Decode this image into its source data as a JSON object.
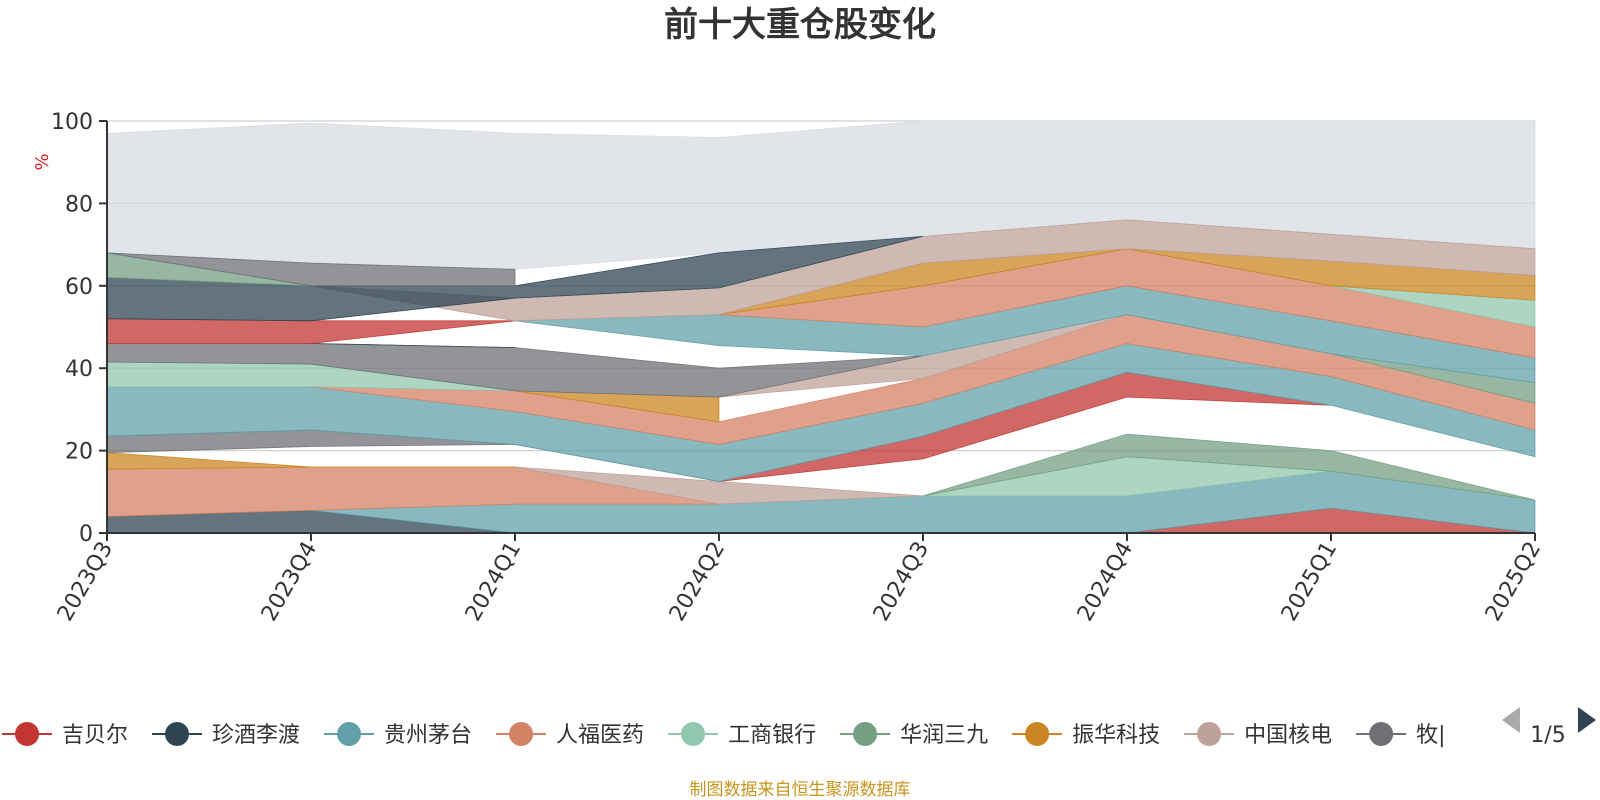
{
  "chart_data": {
    "type": "area",
    "title": "前十大重仓股变化",
    "ylabel": "%",
    "ylim": [
      0,
      100
    ],
    "yticks": [
      0,
      20,
      40,
      60,
      80,
      100
    ],
    "x": [
      "2023Q3",
      "2023Q4",
      "2024Q1",
      "2024Q2",
      "2024Q3",
      "2024Q4",
      "2025Q1",
      "2025Q2"
    ],
    "legend": {
      "placement": "bottom",
      "page": "1/5",
      "items": [
        {
          "name": "吉贝尔",
          "color": "#c23531"
        },
        {
          "name": "珍酒李渡",
          "color": "#2f4554"
        },
        {
          "name": "贵州茅台",
          "color": "#61a0a8"
        },
        {
          "name": "人福医药",
          "color": "#d48265"
        },
        {
          "name": "工商银行",
          "color": "#91c7ae"
        },
        {
          "name": "华润三九",
          "color": "#749f83"
        },
        {
          "name": "振华科技",
          "color": "#ca8622"
        },
        {
          "name": "中国核电",
          "color": "#bda29a"
        },
        {
          "name": "牧原股份",
          "display": "牧|",
          "color": "#6e7074"
        }
      ]
    },
    "series_bands": [
      {
        "color": "#c23531",
        "lower": [
          null,
          null,
          null,
          null,
          null,
          0,
          0,
          0
        ],
        "upper": [
          null,
          null,
          null,
          null,
          null,
          0,
          6,
          0
        ]
      },
      {
        "color": "#2f4554",
        "lower": [
          0,
          0,
          0,
          null,
          null,
          null,
          null,
          null
        ],
        "upper": [
          4,
          5.5,
          0,
          null,
          null,
          null,
          null,
          null
        ]
      },
      {
        "color": "#61a0a8",
        "lower": [
          null,
          5.5,
          0,
          0,
          0,
          0,
          6,
          0
        ],
        "upper": [
          null,
          5.5,
          7,
          7,
          9,
          9,
          15,
          8
        ]
      },
      {
        "color": "#d48265",
        "lower": [
          4,
          5.5,
          7,
          7,
          null,
          null,
          null,
          null
        ],
        "upper": [
          15.5,
          16,
          16,
          7,
          null,
          null,
          null,
          null
        ]
      },
      {
        "color": "#bda29a",
        "lower": [
          null,
          null,
          16,
          7,
          9,
          null,
          null,
          null
        ],
        "upper": [
          null,
          null,
          16,
          12.5,
          9,
          null,
          null,
          null
        ]
      },
      {
        "color": "#91c7ae",
        "lower": [
          null,
          null,
          null,
          null,
          9,
          9,
          15,
          8
        ],
        "upper": [
          null,
          null,
          null,
          null,
          9,
          18.5,
          15,
          8
        ]
      },
      {
        "color": "#749f83",
        "lower": [
          null,
          null,
          null,
          null,
          9,
          18.5,
          15,
          8
        ],
        "upper": [
          null,
          null,
          null,
          null,
          9,
          24,
          20,
          8
        ]
      },
      {
        "color": "#6e7074",
        "lower": [
          19.5,
          21,
          21.5,
          12.5,
          null,
          null,
          null,
          null
        ],
        "upper": [
          23.5,
          25,
          21.5,
          12.5,
          null,
          null,
          null,
          null
        ]
      },
      {
        "color": "#ca8622",
        "lower": [
          15.5,
          16,
          16,
          null,
          null,
          null,
          null,
          null
        ],
        "upper": [
          19.5,
          16,
          16,
          null,
          null,
          null,
          null,
          null
        ]
      },
      {
        "color": "#c23531",
        "lower": [
          null,
          null,
          null,
          12.5,
          18,
          33,
          31,
          null
        ],
        "upper": [
          null,
          null,
          null,
          12.5,
          23.5,
          39,
          31,
          null
        ]
      },
      {
        "color": "#61a0a8",
        "lower": [
          23.5,
          25,
          21.5,
          12.5,
          23.5,
          39,
          31,
          18.5
        ],
        "upper": [
          35.5,
          35.5,
          29.5,
          21.5,
          31.5,
          46,
          38,
          25
        ]
      },
      {
        "color": "#d48265",
        "lower": [
          null,
          35.5,
          29.5,
          21.5,
          31.5,
          46,
          38,
          25
        ],
        "upper": [
          null,
          35.5,
          34.5,
          27,
          37.5,
          53,
          43.5,
          31.5
        ]
      },
      {
        "color": "#ca8622",
        "lower": [
          null,
          null,
          34.5,
          27,
          null,
          null,
          null,
          null
        ],
        "upper": [
          null,
          null,
          34.5,
          33,
          null,
          null,
          null,
          null
        ]
      },
      {
        "color": "#bda29a",
        "lower": [
          null,
          null,
          null,
          33,
          37.5,
          53,
          null,
          null
        ],
        "upper": [
          null,
          null,
          null,
          33,
          43,
          53,
          null,
          null
        ]
      },
      {
        "color": "#749f83",
        "lower": [
          null,
          null,
          null,
          null,
          null,
          null,
          43.5,
          31.5
        ],
        "upper": [
          null,
          null,
          null,
          null,
          null,
          null,
          43.5,
          36.5
        ]
      },
      {
        "color": "#91c7ae",
        "lower": [
          35.5,
          35.5,
          34.5,
          null,
          null,
          null,
          null,
          null
        ],
        "upper": [
          41.5,
          41,
          34.5,
          null,
          null,
          null,
          null,
          null
        ]
      },
      {
        "color": "#6e7074",
        "lower": [
          41.5,
          41,
          34.5,
          33,
          43,
          null,
          null,
          null
        ],
        "upper": [
          46,
          46,
          45,
          40,
          43,
          null,
          null,
          null
        ]
      },
      {
        "color": "#2f4554",
        "lower": [
          null,
          46,
          45,
          null,
          null,
          null,
          null,
          null
        ],
        "upper": [
          null,
          46,
          45,
          null,
          null,
          null,
          null,
          null
        ]
      },
      {
        "color": "#c23531",
        "lower": [
          46,
          46,
          51.5,
          null,
          null,
          null,
          null,
          null
        ],
        "upper": [
          52,
          51.5,
          51.5,
          null,
          null,
          null,
          null,
          null
        ]
      },
      {
        "color": "#61a0a8",
        "lower": [
          null,
          null,
          51.5,
          45.5,
          43,
          53,
          43.5,
          36.5
        ],
        "upper": [
          null,
          null,
          51.5,
          53,
          50,
          60,
          51.5,
          42.5
        ]
      },
      {
        "color": "#d48265",
        "lower": [
          null,
          null,
          null,
          53,
          50,
          60,
          51.5,
          42.5
        ],
        "upper": [
          null,
          null,
          null,
          53,
          60,
          69,
          60,
          50
        ]
      },
      {
        "color": "#91c7ae",
        "lower": [
          null,
          null,
          null,
          null,
          null,
          null,
          60,
          50
        ],
        "upper": [
          null,
          null,
          null,
          null,
          null,
          null,
          60,
          56.5
        ]
      },
      {
        "color": "#ca8622",
        "lower": [
          null,
          null,
          null,
          53,
          60,
          69,
          60,
          56.5
        ],
        "upper": [
          null,
          null,
          null,
          53,
          65.5,
          69,
          66,
          62.5
        ]
      },
      {
        "color": "#bda29a",
        "lower": [
          null,
          60,
          51.5,
          53,
          65.5,
          69,
          66,
          62.5
        ],
        "upper": [
          null,
          60,
          57,
          59.5,
          72,
          76,
          72.5,
          69
        ]
      },
      {
        "color": "#2f4554",
        "lower": [
          52,
          51.5,
          57,
          59.5,
          72,
          null,
          null,
          null
        ],
        "upper": [
          62,
          60,
          60,
          68,
          72,
          null,
          null,
          null
        ]
      },
      {
        "color": "#749f83",
        "lower": [
          62,
          60,
          null,
          null,
          null,
          null,
          null,
          null
        ],
        "upper": [
          68,
          60,
          null,
          null,
          null,
          null,
          null,
          null
        ]
      },
      {
        "color": "#6e7074",
        "lower": [
          68,
          60,
          60,
          null,
          null,
          null,
          null,
          null
        ],
        "upper": [
          68,
          65.5,
          64,
          null,
          null,
          null,
          null,
          null
        ]
      }
    ],
    "other_band": {
      "color": "#d7dbe2",
      "lower": [
        68,
        65.5,
        64,
        68,
        72,
        76,
        72.5,
        69
      ],
      "upper": [
        97,
        99.5,
        97,
        96,
        100,
        100,
        100,
        100
      ]
    },
    "source_note": "制图数据来自恒生聚源数据库"
  }
}
